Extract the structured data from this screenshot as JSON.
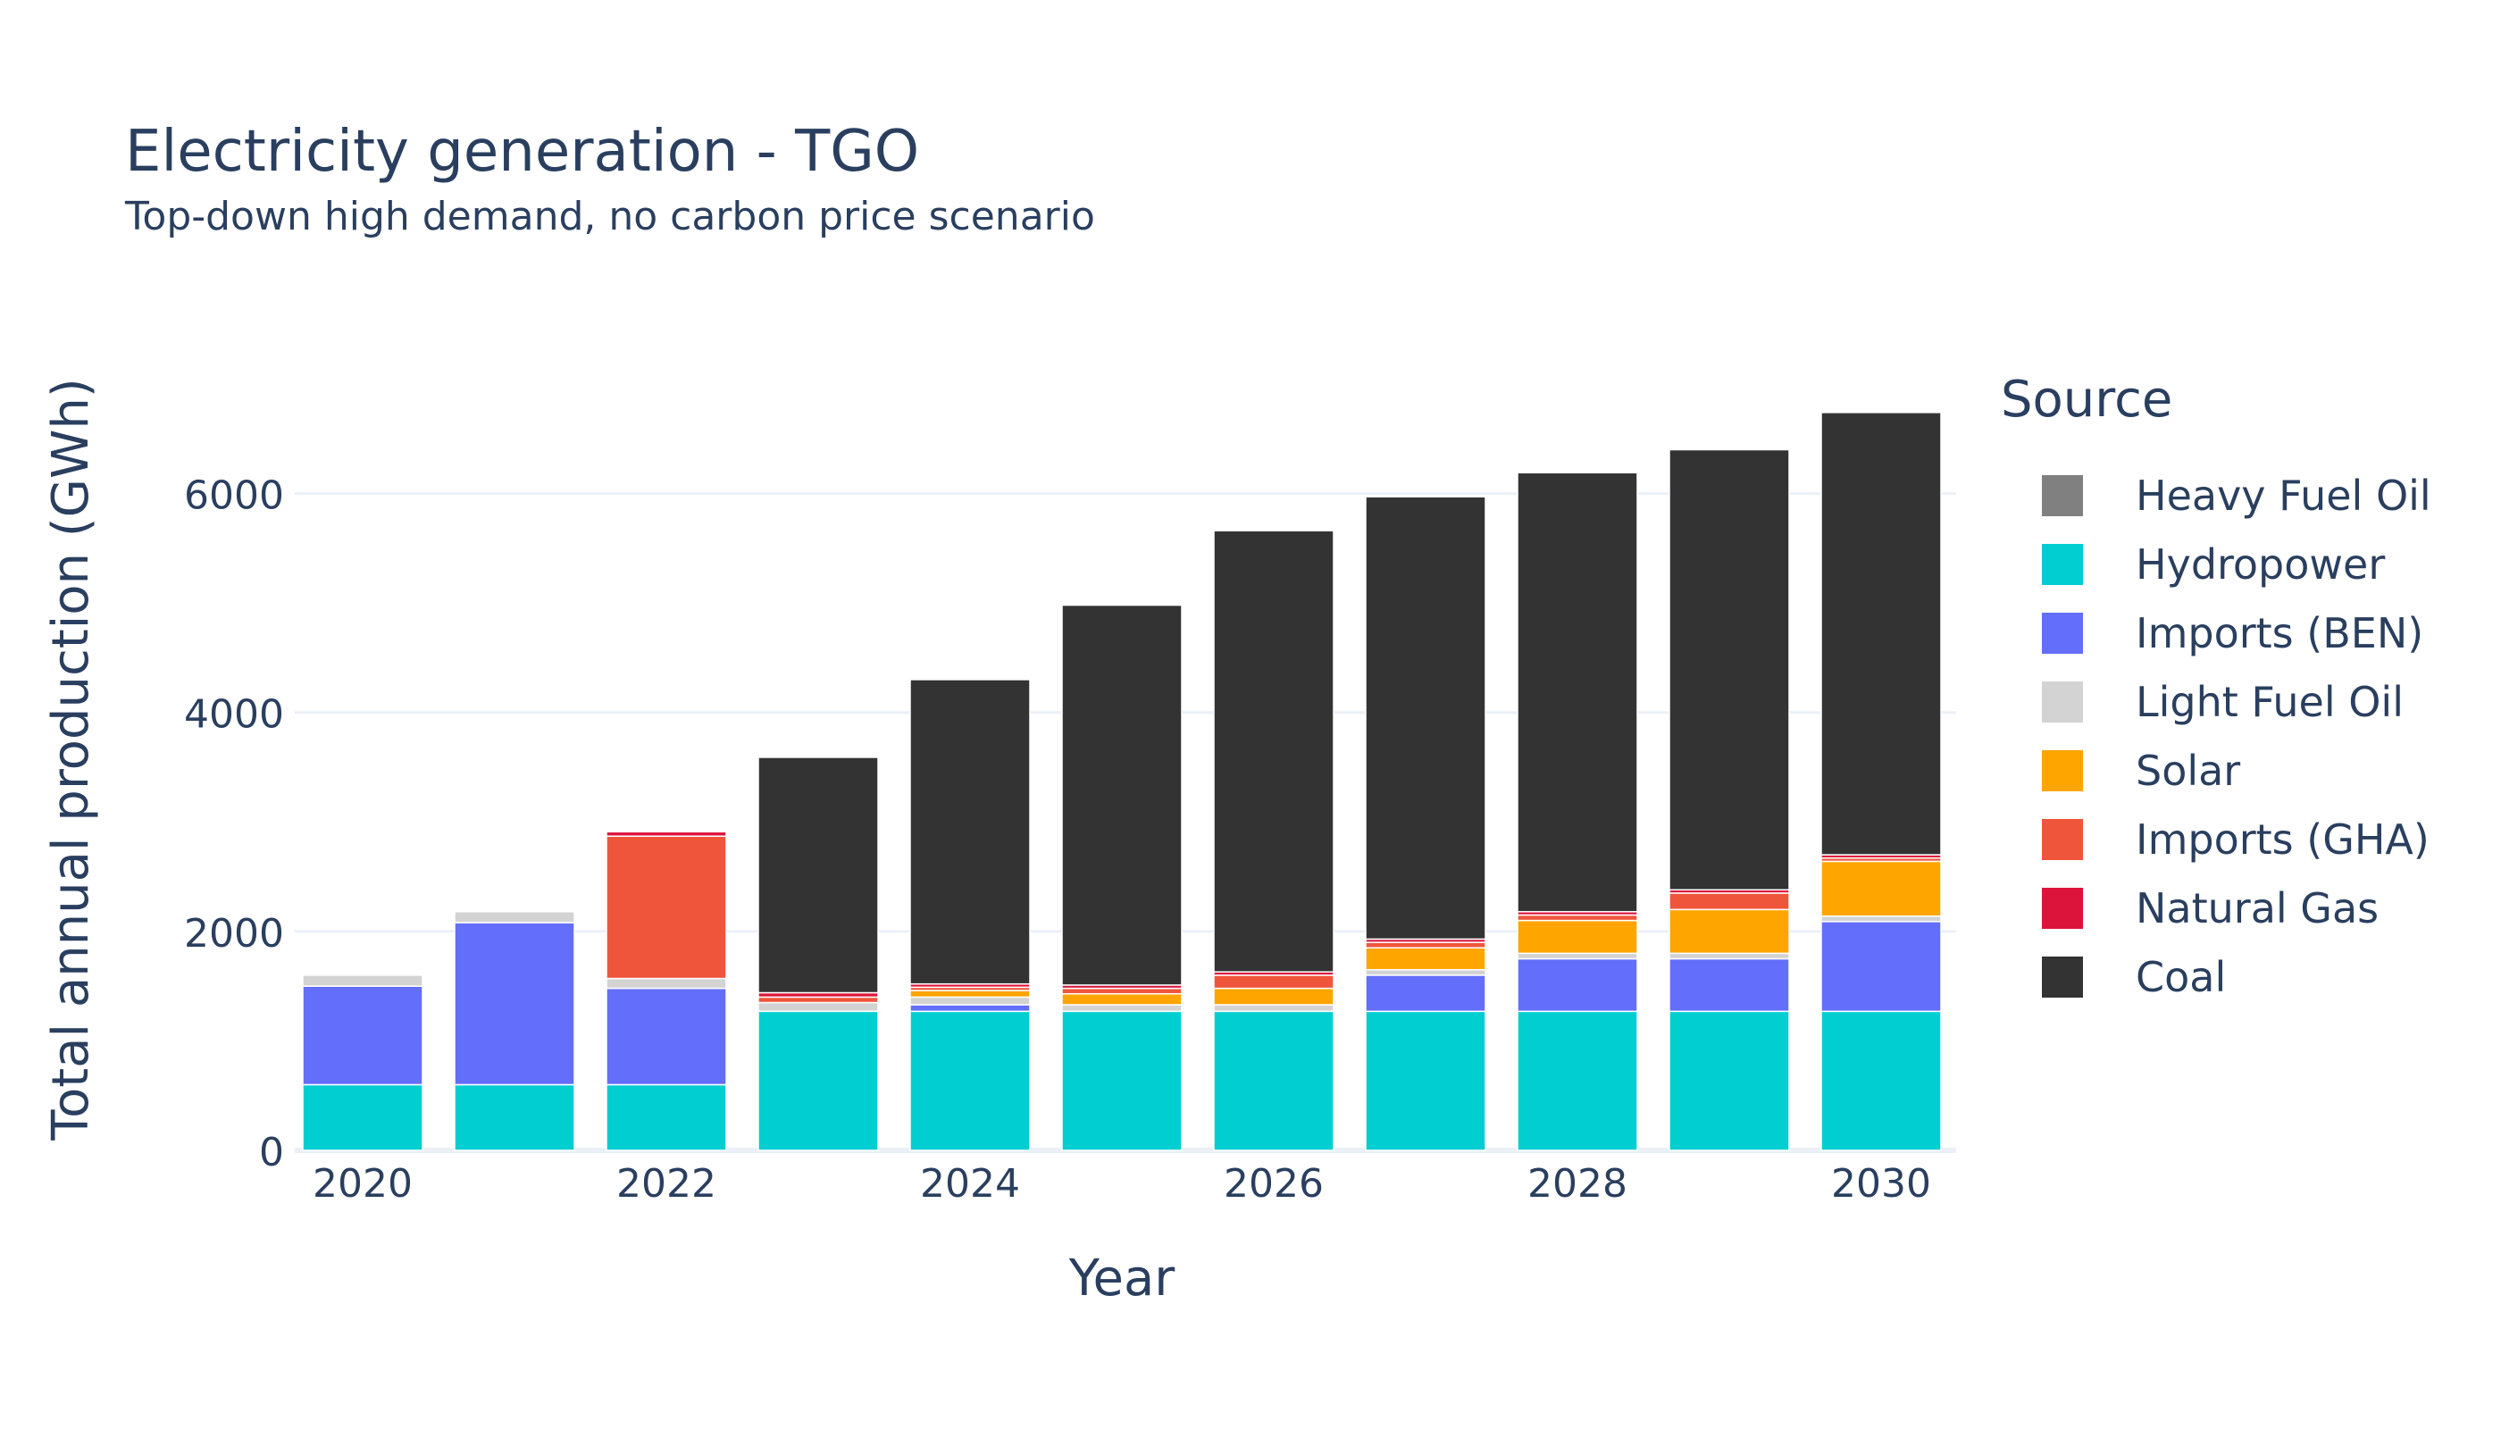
{
  "chart_data": {
    "type": "bar",
    "stacked": true,
    "title": "Electricity generation - TGO",
    "subtitle": "Top-down high demand, no carbon price scenario",
    "xlabel": "Year",
    "ylabel": "Total annual production (GWh)",
    "legend_title": "Source",
    "legend_position": "right",
    "grid": true,
    "x": [
      2020,
      2021,
      2022,
      2023,
      2024,
      2025,
      2026,
      2027,
      2028,
      2029,
      2030
    ],
    "x_tick_labels": [
      "2020",
      "2022",
      "2024",
      "2026",
      "2028",
      "2030"
    ],
    "y_tick_labels": [
      "0",
      "2000",
      "4000",
      "6000"
    ],
    "ylim": [
      0,
      7000
    ],
    "series": [
      {
        "name": "Hydropower",
        "color": "#00CED1",
        "values": [
          600,
          600,
          600,
          1270,
          1270,
          1270,
          1270,
          1270,
          1270,
          1270,
          1270
        ]
      },
      {
        "name": "Imports (BEN)",
        "color": "#636EFA",
        "values": [
          900,
          1480,
          880,
          0,
          60,
          0,
          0,
          330,
          480,
          480,
          820
        ]
      },
      {
        "name": "Light Fuel Oil",
        "color": "#D3D3D3",
        "values": [
          100,
          100,
          90,
          80,
          70,
          60,
          60,
          50,
          50,
          50,
          50
        ]
      },
      {
        "name": "Solar",
        "color": "#FFA500",
        "values": [
          0,
          0,
          0,
          0,
          60,
          100,
          150,
          200,
          300,
          400,
          500
        ]
      },
      {
        "name": "Imports (GHA)",
        "color": "#EF553B",
        "values": [
          0,
          0,
          1300,
          50,
          30,
          50,
          120,
          50,
          50,
          150,
          30
        ]
      },
      {
        "name": "Natural Gas",
        "color": "#DC143C",
        "values": [
          0,
          0,
          40,
          40,
          30,
          30,
          30,
          30,
          30,
          30,
          30
        ]
      },
      {
        "name": "Heavy Fuel Oil",
        "color": "#808080",
        "values": [
          0,
          0,
          0,
          0,
          0,
          0,
          0,
          0,
          0,
          0,
          0
        ]
      },
      {
        "name": "Coal",
        "color": "#333333",
        "values": [
          0,
          0,
          0,
          2150,
          2780,
          3470,
          4030,
          4040,
          4010,
          4020,
          4040
        ]
      }
    ],
    "legend_order": [
      "Heavy Fuel Oil",
      "Hydropower",
      "Imports (BEN)",
      "Light Fuel Oil",
      "Solar",
      "Imports (GHA)",
      "Natural Gas",
      "Coal"
    ]
  }
}
